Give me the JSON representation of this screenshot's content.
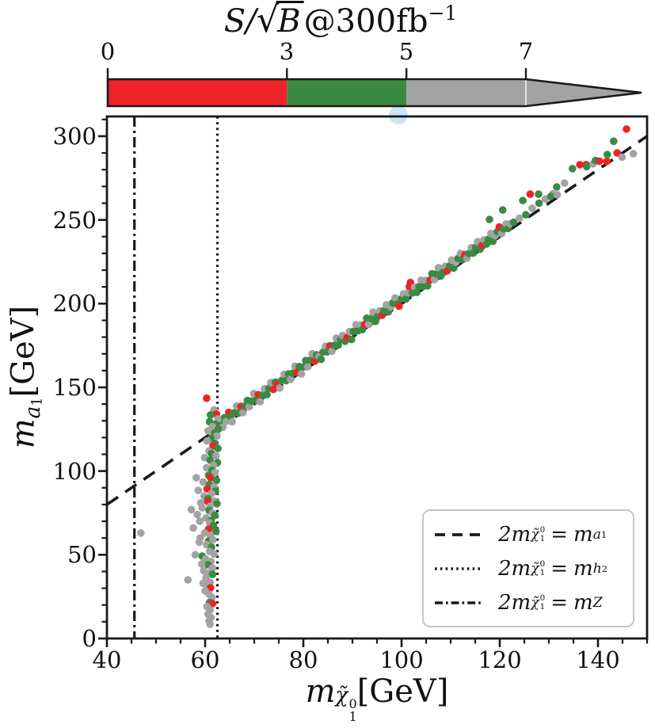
{
  "colorbar": {
    "title": "S/√B@300fb⁻¹",
    "title_parts": {
      "lhs": "S/",
      "sqrt": "√",
      "arg": "B",
      "rhs": "@300fb",
      "sup": "−1"
    },
    "ticks": [
      {
        "value": 0,
        "label": "0"
      },
      {
        "value": 3,
        "label": "3"
      },
      {
        "value": 5,
        "label": "5"
      },
      {
        "value": 7,
        "label": "7"
      }
    ],
    "segments": [
      {
        "from": 0,
        "to": 3,
        "color": "#ed2328"
      },
      {
        "from": 3,
        "to": 5,
        "color": "#3b8a43"
      },
      {
        "from": 5,
        "to": 7,
        "color": "#a3a3a3"
      }
    ],
    "arrow_color": "#a3a3a3",
    "outline_color": "#1a1a1a"
  },
  "artifact": {
    "color": "#c9e7f6"
  },
  "x_axis": {
    "label": {
      "m": "m",
      "chi": "χ̃",
      "sup": "0",
      "sub": "1",
      "unit": "[GeV]"
    },
    "tick_labels": [
      "40",
      "60",
      "80",
      "100",
      "120",
      "140"
    ]
  },
  "y_axis": {
    "label": {
      "m": "m",
      "sub_main": "a",
      "sub_sub": "1",
      "unit": "[GeV]"
    },
    "tick_labels": [
      "300",
      "250",
      "200",
      "150",
      "100",
      "50",
      "0"
    ]
  },
  "legend": {
    "position": "lower right",
    "items": [
      {
        "line_style": "dashed",
        "lhs": "2m",
        "chi": "χ̃",
        "chi_sup": "0",
        "chi_sub": "1",
        "eq": "=",
        "rhs": "m",
        "rhs_main": "a",
        "rhs_sub": "1"
      },
      {
        "line_style": "dotted",
        "lhs": "2m",
        "chi": "χ̃",
        "chi_sup": "0",
        "chi_sub": "1",
        "eq": "=",
        "rhs": "m",
        "rhs_main": "h",
        "rhs_sub": "2"
      },
      {
        "line_style": "dashdot",
        "lhs": "2m",
        "chi": "χ̃",
        "chi_sup": "0",
        "chi_sub": "1",
        "eq": "=",
        "rhs": "m",
        "rhs_main": "Z",
        "rhs_sub": ""
      }
    ]
  },
  "chart_data": {
    "type": "scatter",
    "title": "S/√B@300fb⁻¹",
    "xlabel": "m_χ̃₁⁰ [GeV]",
    "ylabel": "m_a₁ [GeV]",
    "xlim": [
      40,
      150
    ],
    "ylim": [
      0,
      311.8
    ],
    "xticks": {
      "major": [
        40,
        60,
        80,
        100,
        120,
        140
      ],
      "minor_step": 5
    },
    "yticks": {
      "major": [
        0,
        50,
        100,
        150,
        200,
        250,
        300
      ],
      "minor_step": 10
    },
    "grid": false,
    "colors": {
      "r": "#ed2328",
      "g": "#3b8a43",
      "y": "#a3a3a3"
    },
    "color_meaning": {
      "r": "S/√B in [0,3]",
      "g": "S/√B in [3,5]",
      "y": "S/√B ≥ 5"
    },
    "ref_lines": [
      {
        "name": "2m_chi10 = m_a1",
        "style": "dashed",
        "type": "diagonal",
        "x1": 40,
        "y1": 80,
        "x2": 150,
        "y2": 300
      },
      {
        "name": "2m_chi10 = m_h2",
        "style": "dotted",
        "type": "vertical",
        "x": 62.5
      },
      {
        "name": "2m_chi10 = m_Z",
        "style": "dashdot",
        "type": "vertical",
        "x": 45.6
      }
    ],
    "points": [
      [
        63.3,
        128.6,
        "g"
      ],
      [
        63.6,
        126.2,
        "y"
      ],
      [
        63.9,
        131.8,
        "g"
      ],
      [
        64.3,
        129.6,
        "y"
      ],
      [
        64.8,
        135.1,
        "r"
      ],
      [
        65.2,
        132.4,
        "g"
      ],
      [
        65.5,
        129.5,
        "y"
      ],
      [
        65.9,
        134.8,
        "g"
      ],
      [
        66.4,
        138.8,
        "y"
      ],
      [
        66.8,
        134.6,
        "g"
      ],
      [
        67.3,
        138.6,
        "r"
      ],
      [
        67.7,
        134.9,
        "y"
      ],
      [
        68.1,
        138.7,
        "g"
      ],
      [
        68.6,
        142.2,
        "g"
      ],
      [
        69.0,
        138.5,
        "y"
      ],
      [
        69.4,
        141.8,
        "g"
      ],
      [
        69.9,
        146.3,
        "y"
      ],
      [
        70.3,
        142.1,
        "g"
      ],
      [
        70.8,
        145.6,
        "r"
      ],
      [
        71.2,
        141.4,
        "y"
      ],
      [
        71.7,
        145.4,
        "g"
      ],
      [
        72.1,
        149.2,
        "y"
      ],
      [
        72.6,
        145.7,
        "g"
      ],
      [
        73.0,
        149.5,
        "g"
      ],
      [
        73.4,
        152.8,
        "y"
      ],
      [
        73.9,
        148.8,
        "r"
      ],
      [
        74.3,
        153.1,
        "g"
      ],
      [
        74.7,
        151.9,
        "r"
      ],
      [
        75.2,
        149.6,
        "y"
      ],
      [
        75.6,
        154.2,
        "g"
      ],
      [
        76.1,
        157.7,
        "y"
      ],
      [
        76.5,
        154.0,
        "g"
      ],
      [
        77.0,
        158.0,
        "g"
      ],
      [
        77.4,
        154.8,
        "y"
      ],
      [
        77.8,
        158.4,
        "g"
      ],
      [
        78.3,
        162.6,
        "y"
      ],
      [
        78.7,
        158.9,
        "r"
      ],
      [
        79.2,
        162.4,
        "g"
      ],
      [
        79.6,
        158.0,
        "y"
      ],
      [
        80.1,
        162.2,
        "g"
      ],
      [
        80.5,
        166.0,
        "g"
      ],
      [
        80.9,
        162.3,
        "y"
      ],
      [
        81.4,
        166.3,
        "g"
      ],
      [
        81.8,
        170.1,
        "y"
      ],
      [
        82.3,
        165.6,
        "r"
      ],
      [
        82.7,
        169.4,
        "g"
      ],
      [
        83.2,
        168.4,
        "y"
      ],
      [
        83.6,
        166.7,
        "g"
      ],
      [
        84.0,
        171.0,
        "g"
      ],
      [
        84.5,
        174.5,
        "y"
      ],
      [
        84.9,
        171.3,
        "g"
      ],
      [
        85.4,
        174.8,
        "r"
      ],
      [
        85.8,
        171.6,
        "y"
      ],
      [
        86.3,
        175.1,
        "g"
      ],
      [
        86.7,
        179.4,
        "y"
      ],
      [
        87.1,
        175.2,
        "g"
      ],
      [
        87.6,
        178.7,
        "g"
      ],
      [
        88.0,
        181.0,
        "y"
      ],
      [
        88.5,
        177.5,
        "g"
      ],
      [
        88.9,
        179.8,
        "r"
      ],
      [
        89.4,
        183.3,
        "y"
      ],
      [
        89.8,
        178.6,
        "g"
      ],
      [
        90.2,
        183.4,
        "g"
      ],
      [
        90.7,
        187.4,
        "y"
      ],
      [
        91.1,
        183.7,
        "g"
      ],
      [
        91.6,
        187.2,
        "y"
      ],
      [
        92.0,
        184.5,
        "g"
      ],
      [
        92.5,
        187.5,
        "r"
      ],
      [
        92.9,
        191.3,
        "g"
      ],
      [
        93.3,
        187.6,
        "y"
      ],
      [
        93.8,
        191.1,
        "g"
      ],
      [
        94.2,
        194.9,
        "y"
      ],
      [
        94.7,
        189.4,
        "g"
      ],
      [
        95.1,
        192.2,
        "g"
      ],
      [
        95.6,
        195.7,
        "y"
      ],
      [
        96.0,
        193.0,
        "r"
      ],
      [
        96.4,
        195.8,
        "g"
      ],
      [
        96.9,
        199.3,
        "y"
      ],
      [
        97.3,
        195.1,
        "g"
      ],
      [
        97.8,
        198.1,
        "y"
      ],
      [
        98.2,
        200.4,
        "g"
      ],
      [
        98.7,
        203.4,
        "y"
      ],
      [
        99.1,
        199.7,
        "g"
      ],
      [
        99.5,
        198.5,
        "r"
      ],
      [
        100.0,
        203.0,
        "g"
      ],
      [
        100.4,
        205.8,
        "y"
      ],
      [
        100.9,
        202.8,
        "g"
      ],
      [
        101.3,
        206.6,
        "y"
      ],
      [
        101.6,
        210.2,
        "r"
      ],
      [
        101.8,
        212.6,
        "r"
      ],
      [
        102.2,
        206.4,
        "g"
      ],
      [
        102.7,
        209.9,
        "y"
      ],
      [
        103.1,
        206.7,
        "g"
      ],
      [
        103.6,
        210.2,
        "g"
      ],
      [
        104.0,
        214.0,
        "y"
      ],
      [
        104.4,
        210.3,
        "g"
      ],
      [
        104.9,
        213.8,
        "y"
      ],
      [
        105.3,
        210.6,
        "g"
      ],
      [
        105.8,
        214.1,
        "r"
      ],
      [
        106.2,
        217.9,
        "g"
      ],
      [
        106.7,
        214.4,
        "y"
      ],
      [
        107.1,
        217.7,
        "g"
      ],
      [
        107.5,
        221.5,
        "y"
      ],
      [
        108.0,
        216.5,
        "g"
      ],
      [
        108.4,
        218.8,
        "g"
      ],
      [
        108.9,
        222.3,
        "y"
      ],
      [
        109.3,
        219.6,
        "r"
      ],
      [
        109.8,
        222.6,
        "g"
      ],
      [
        110.2,
        226.0,
        "y"
      ],
      [
        110.6,
        221.2,
        "g"
      ],
      [
        111.1,
        224.7,
        "y"
      ],
      [
        111.5,
        227.0,
        "g"
      ],
      [
        112.0,
        230.0,
        "y"
      ],
      [
        112.4,
        226.3,
        "g"
      ],
      [
        112.9,
        229.3,
        "r"
      ],
      [
        113.3,
        227.1,
        "y"
      ],
      [
        113.7,
        229.9,
        "g"
      ],
      [
        114.2,
        233.4,
        "y"
      ],
      [
        114.6,
        230.2,
        "g"
      ],
      [
        115.1,
        233.7,
        "g"
      ],
      [
        115.5,
        237.0,
        "y"
      ],
      [
        116.0,
        232.5,
        "g"
      ],
      [
        116.4,
        234.8,
        "r"
      ],
      [
        116.8,
        238.1,
        "y"
      ],
      [
        117.3,
        235.6,
        "g"
      ],
      [
        117.7,
        238.4,
        "g"
      ],
      [
        118.2,
        241.9,
        "y"
      ],
      [
        118.6,
        237.2,
        "g"
      ],
      [
        119.1,
        240.7,
        "y"
      ],
      [
        119.5,
        243.0,
        "g"
      ],
      [
        119.9,
        245.8,
        "r"
      ],
      [
        120.4,
        241.8,
        "y"
      ],
      [
        120.8,
        244.6,
        "g"
      ],
      [
        121.3,
        247.6,
        "y"
      ],
      [
        121.7,
        244.9,
        "g"
      ],
      [
        122.1,
        247.7,
        "y"
      ],
      [
        122.8,
        248.6,
        "g"
      ],
      [
        124.0,
        251.0,
        "y"
      ],
      [
        125.3,
        253.1,
        "g"
      ],
      [
        117.9,
        250.3,
        "g"
      ],
      [
        120.6,
        255.9,
        "g"
      ],
      [
        124.7,
        261.6,
        "g"
      ],
      [
        126.2,
        265.4,
        "r"
      ],
      [
        127.9,
        265.4,
        "g"
      ],
      [
        130.8,
        265.6,
        "y"
      ],
      [
        126.6,
        257.0,
        "y"
      ],
      [
        128.0,
        260.0,
        "g"
      ],
      [
        129.3,
        262.5,
        "y"
      ],
      [
        130.4,
        264.0,
        "g"
      ],
      [
        131.6,
        269.7,
        "g"
      ],
      [
        131.7,
        265.0,
        "y"
      ],
      [
        133.2,
        272.0,
        "y"
      ],
      [
        134.8,
        280.6,
        "g"
      ],
      [
        136.3,
        283.0,
        "r"
      ],
      [
        137.6,
        283.0,
        "r"
      ],
      [
        137.7,
        281.8,
        "g"
      ],
      [
        139.0,
        283.5,
        "y"
      ],
      [
        139.5,
        285.5,
        "g"
      ],
      [
        140.3,
        285.0,
        "r"
      ],
      [
        141.8,
        285.0,
        "r"
      ],
      [
        141.9,
        289.1,
        "g"
      ],
      [
        143.2,
        297.0,
        "g"
      ],
      [
        143.9,
        290.0,
        "r"
      ],
      [
        145.8,
        304.3,
        "r"
      ],
      [
        147.2,
        289.5,
        "y"
      ],
      [
        144.9,
        287.5,
        "y"
      ],
      [
        60.3,
        143.5,
        "r"
      ],
      [
        61.8,
        136.5,
        "y"
      ],
      [
        62.3,
        134.0,
        "r"
      ],
      [
        61.1,
        133.5,
        "g"
      ],
      [
        62.6,
        131.0,
        "y"
      ],
      [
        60.9,
        129.5,
        "g"
      ],
      [
        62.1,
        128.0,
        "g"
      ],
      [
        61.5,
        126.5,
        "y"
      ],
      [
        62.7,
        125.0,
        "g"
      ],
      [
        60.6,
        124.0,
        "y"
      ],
      [
        61.9,
        122.5,
        "g"
      ],
      [
        62.4,
        121.0,
        "y"
      ],
      [
        61.2,
        119.5,
        "g"
      ],
      [
        60.4,
        118.0,
        "y"
      ],
      [
        62.0,
        116.5,
        "g"
      ],
      [
        61.6,
        115.0,
        "r"
      ],
      [
        62.6,
        113.5,
        "g"
      ],
      [
        60.8,
        112.0,
        "y"
      ],
      [
        61.3,
        110.5,
        "g"
      ],
      [
        62.2,
        109.0,
        "y"
      ],
      [
        59.9,
        108.0,
        "y"
      ],
      [
        61.0,
        106.5,
        "g"
      ],
      [
        62.5,
        105.0,
        "g"
      ],
      [
        61.7,
        103.5,
        "y"
      ],
      [
        60.3,
        102.0,
        "y"
      ],
      [
        61.4,
        100.5,
        "g"
      ],
      [
        62.0,
        99.0,
        "y"
      ],
      [
        60.7,
        97.5,
        "g"
      ],
      [
        61.1,
        96.0,
        "r"
      ],
      [
        62.3,
        94.5,
        "g"
      ],
      [
        59.6,
        93.5,
        "y"
      ],
      [
        60.9,
        92.0,
        "g"
      ],
      [
        61.8,
        90.5,
        "y"
      ],
      [
        60.4,
        89.4,
        "r"
      ],
      [
        62.1,
        88.0,
        "g"
      ],
      [
        61.3,
        86.5,
        "y"
      ],
      [
        59.8,
        85.0,
        "y"
      ],
      [
        60.6,
        83.5,
        "g"
      ],
      [
        61.9,
        82.0,
        "y"
      ],
      [
        60.5,
        81.8,
        "r"
      ],
      [
        62.4,
        80.5,
        "g"
      ],
      [
        61.0,
        79.0,
        "y"
      ],
      [
        59.4,
        78.0,
        "y"
      ],
      [
        60.8,
        76.5,
        "g"
      ],
      [
        61.5,
        75.0,
        "y"
      ],
      [
        62.0,
        73.5,
        "g"
      ],
      [
        60.2,
        72.0,
        "y"
      ],
      [
        61.2,
        70.5,
        "g"
      ],
      [
        58.9,
        70.0,
        "y"
      ],
      [
        60.9,
        69.0,
        "y"
      ],
      [
        61.7,
        67.5,
        "g"
      ],
      [
        60.7,
        65.3,
        "r"
      ],
      [
        62.2,
        64.0,
        "g"
      ],
      [
        59.9,
        63.0,
        "y"
      ],
      [
        61.1,
        61.5,
        "y"
      ],
      [
        60.7,
        58.2,
        "g"
      ],
      [
        61.6,
        59.0,
        "y"
      ],
      [
        58.8,
        57.5,
        "y"
      ],
      [
        60.3,
        56.0,
        "y"
      ],
      [
        61.3,
        54.5,
        "g"
      ],
      [
        59.4,
        49.2,
        "g"
      ],
      [
        60.9,
        52.0,
        "y"
      ],
      [
        61.8,
        50.5,
        "y"
      ],
      [
        60.1,
        47.5,
        "y"
      ],
      [
        61.2,
        46.0,
        "y"
      ],
      [
        60.6,
        44.0,
        "g"
      ],
      [
        61.5,
        42.0,
        "y"
      ],
      [
        59.7,
        40.5,
        "y"
      ],
      [
        60.8,
        38.9,
        "y"
      ],
      [
        61.5,
        38.3,
        "g"
      ],
      [
        60.2,
        36.5,
        "y"
      ],
      [
        56.5,
        35.0,
        "y"
      ],
      [
        61.0,
        33.5,
        "y"
      ],
      [
        60.5,
        31.5,
        "y"
      ],
      [
        61.1,
        30.3,
        "r"
      ],
      [
        60.0,
        28.5,
        "y"
      ],
      [
        60.8,
        26.5,
        "y"
      ],
      [
        61.4,
        24.5,
        "y"
      ],
      [
        60.9,
        21.5,
        "g"
      ],
      [
        61.5,
        20.8,
        "r"
      ],
      [
        60.4,
        19.0,
        "y"
      ],
      [
        61.0,
        17.0,
        "y"
      ],
      [
        60.6,
        14.5,
        "y"
      ],
      [
        61.2,
        12.5,
        "y"
      ],
      [
        60.8,
        10.5,
        "y"
      ],
      [
        61.0,
        8.5,
        "y"
      ],
      [
        58.2,
        96.0,
        "y"
      ],
      [
        58.6,
        88.5,
        "y"
      ],
      [
        59.1,
        81.0,
        "y"
      ],
      [
        58.4,
        74.0,
        "y"
      ],
      [
        59.0,
        60.0,
        "y"
      ],
      [
        57.6,
        66.0,
        "y"
      ],
      [
        57.2,
        77.0,
        "y"
      ],
      [
        58.0,
        50.0,
        "y"
      ],
      [
        59.3,
        44.5,
        "y"
      ],
      [
        59.6,
        33.0,
        "y"
      ],
      [
        46.9,
        63.0,
        "y"
      ]
    ]
  }
}
